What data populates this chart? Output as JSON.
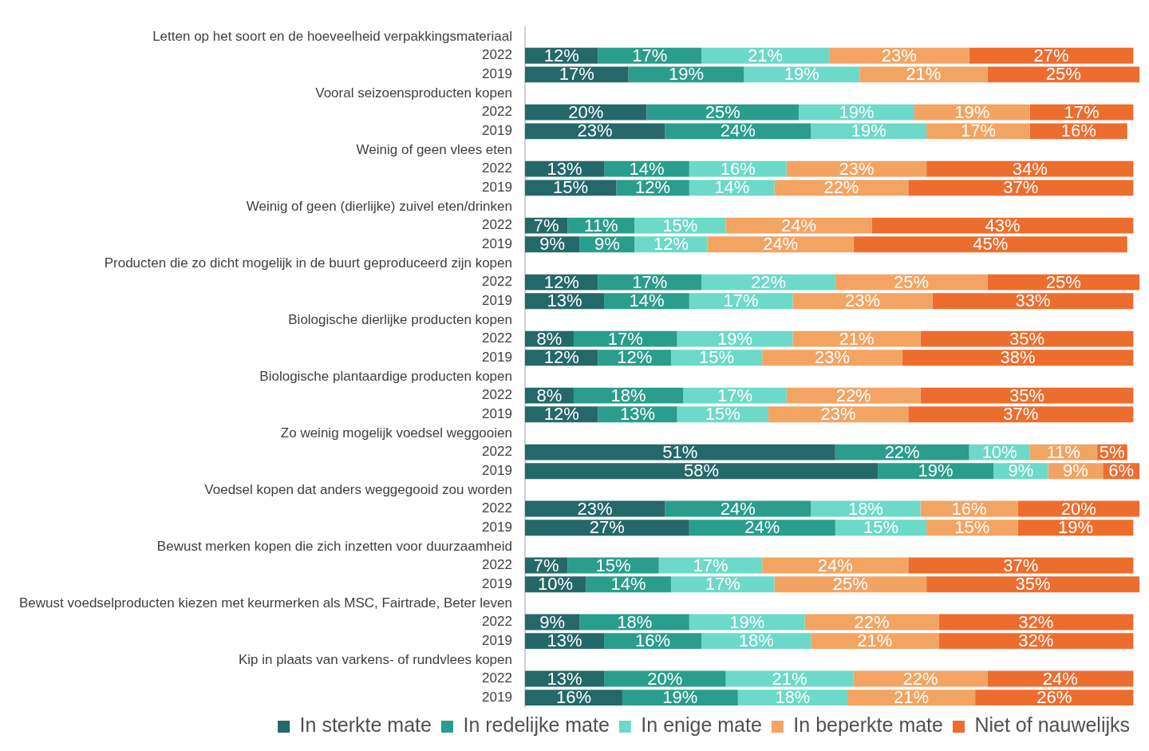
{
  "chart_data": {
    "type": "bar",
    "orientation": "horizontal",
    "stacked": true,
    "xlim": [
      0,
      101
    ],
    "tick_labels": "y",
    "legend": "bottom",
    "categories": [
      "Letten op het soort en de hoeveelheid verpakkingsmateriaal",
      "2022",
      "2019",
      "Vooral seizoensproducten kopen",
      "2022",
      "2019",
      "Weinig of geen vlees eten",
      "2022",
      "2019",
      "Weinig of geen (dierlijke) zuivel eten/drinken",
      "2022",
      "2019",
      "Producten die zo dicht mogelijk in de buurt geproduceerd zijn kopen",
      "2022",
      "2019",
      "Biologische dierlijke producten kopen",
      "2022",
      "2019",
      "Biologische plantaardige producten kopen",
      "2022",
      "2019",
      "Zo weinig mogelijk voedsel weggooien",
      "2022",
      "2019",
      "Voedsel kopen dat anders weggegooid zou worden",
      "2022",
      "2019",
      "Bewust merken kopen die zich inzetten voor duurzaamheid",
      "2022",
      "2019",
      "Bewust voedselproducten kiezen met keurmerken als MSC, Fairtrade, Beter leven",
      "2022",
      "2019",
      "Kip in plaats van varkens- of rundvlees kopen",
      "2022",
      "2019"
    ],
    "series": [
      {
        "name": "In sterkte mate",
        "color": "#25686a",
        "values": [
          null,
          12,
          17,
          null,
          20,
          23,
          null,
          13,
          15,
          null,
          7,
          9,
          null,
          12,
          13,
          null,
          8,
          12,
          null,
          8,
          12,
          null,
          51,
          58,
          null,
          23,
          27,
          null,
          7,
          10,
          null,
          9,
          13,
          null,
          13,
          16
        ],
        "value_labels": [
          null,
          "12%",
          "17%",
          null,
          "20%",
          "23%",
          null,
          "13%",
          "15%",
          null,
          "7%",
          "9%",
          null,
          "12%",
          "13%",
          null,
          "8%",
          "12%",
          null,
          "8%",
          "12%",
          null,
          "51%",
          "58%",
          null,
          "23%",
          "27%",
          null,
          "7%",
          "10%",
          null,
          "9%",
          "13%",
          null,
          "13%",
          "16%"
        ]
      },
      {
        "name": "In redelijke mate",
        "color": "#2a9d8c",
        "values": [
          null,
          17,
          19,
          null,
          25,
          24,
          null,
          14,
          12,
          null,
          11,
          9,
          null,
          17,
          14,
          null,
          17,
          12,
          null,
          18,
          13,
          null,
          22,
          19,
          null,
          24,
          24,
          null,
          15,
          14,
          null,
          18,
          16,
          null,
          20,
          19
        ],
        "value_labels": [
          null,
          "17%",
          "19%",
          null,
          "25%",
          "24%",
          null,
          "14%",
          "12%",
          null,
          "11%",
          "9%",
          null,
          "17%",
          "14%",
          null,
          "17%",
          "12%",
          null,
          "18%",
          "13%",
          null,
          "22%",
          "19%",
          null,
          "24%",
          "24%",
          null,
          "15%",
          "14%",
          null,
          "18%",
          "16%",
          null,
          "20%",
          "19%"
        ]
      },
      {
        "name": "In enige mate",
        "color": "#6dd9c8",
        "values": [
          null,
          21,
          19,
          null,
          19,
          19,
          null,
          16,
          14,
          null,
          15,
          12,
          null,
          22,
          17,
          null,
          19,
          15,
          null,
          17,
          15,
          null,
          10,
          9,
          null,
          18,
          15,
          null,
          17,
          17,
          null,
          19,
          18,
          null,
          21,
          18
        ],
        "value_labels": [
          null,
          "21%",
          "19%",
          null,
          "19%",
          "19%",
          null,
          "16%",
          "14%",
          null,
          "15%",
          "12%",
          null,
          "22%",
          "17%",
          null,
          "19%",
          "15%",
          null,
          "17%",
          "15%",
          null,
          "10%",
          "9%",
          null,
          "18%",
          "15%",
          null,
          "17%",
          "17%",
          null,
          "19%",
          "18%",
          null,
          "21%",
          "18%"
        ]
      },
      {
        "name": "In beperkte mate",
        "color": "#f3a462",
        "values": [
          null,
          23,
          21,
          null,
          19,
          17,
          null,
          23,
          22,
          null,
          24,
          24,
          null,
          25,
          23,
          null,
          21,
          23,
          null,
          22,
          23,
          null,
          11,
          9,
          null,
          16,
          15,
          null,
          24,
          25,
          null,
          22,
          21,
          null,
          22,
          21
        ],
        "value_labels": [
          null,
          "23%",
          "21%",
          null,
          "19%",
          "17%",
          null,
          "23%",
          "22%",
          null,
          "24%",
          "24%",
          null,
          "25%",
          "23%",
          null,
          "21%",
          "23%",
          null,
          "22%",
          "23%",
          null,
          "11%",
          "9%",
          null,
          "16%",
          "15%",
          null,
          "24%",
          "25%",
          null,
          "22%",
          "21%",
          null,
          "22%",
          "21%"
        ]
      },
      {
        "name": "Niet of nauwelijks",
        "color": "#ed6d2f",
        "values": [
          null,
          27,
          25,
          null,
          17,
          16,
          null,
          34,
          37,
          null,
          43,
          45,
          null,
          25,
          33,
          null,
          35,
          38,
          null,
          35,
          37,
          null,
          5,
          6,
          null,
          20,
          19,
          null,
          37,
          35,
          null,
          32,
          32,
          null,
          24,
          26
        ],
        "value_labels": [
          null,
          "27%",
          "25%",
          null,
          "17%",
          "16%",
          null,
          "34%",
          "37%",
          null,
          "43%",
          "45%",
          null,
          "25%",
          "33%",
          null,
          "35%",
          "38%",
          null,
          "35%",
          "37%",
          null,
          "5%",
          "6%",
          null,
          "20%",
          "19%",
          null,
          "37%",
          "35%",
          null,
          "32%",
          "32%",
          null,
          "24%",
          "26%"
        ]
      }
    ]
  }
}
